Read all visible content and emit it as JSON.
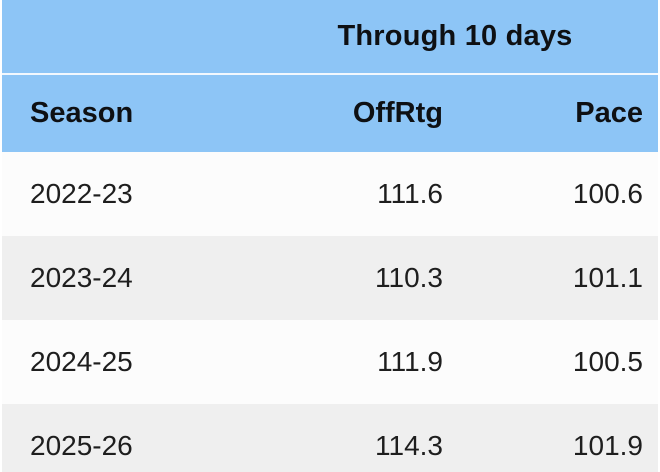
{
  "table": {
    "group_header": "Through 10 days",
    "columns": [
      {
        "label": "Season",
        "align": "left"
      },
      {
        "label": "OffRtg",
        "align": "right"
      },
      {
        "label": "Pace",
        "align": "right"
      }
    ],
    "rows": [
      {
        "season": "2022-23",
        "offrtg": "111.6",
        "pace": "100.6"
      },
      {
        "season": "2023-24",
        "offrtg": "110.3",
        "pace": "101.1"
      },
      {
        "season": "2024-25",
        "offrtg": "111.9",
        "pace": "100.5"
      },
      {
        "season": "2025-26",
        "offrtg": "114.3",
        "pace": "101.9"
      }
    ],
    "colors": {
      "header_blue": "#8dc5f6",
      "separator_line": "#f2f8fe",
      "row_light": "#fcfcfc",
      "row_gray": "#efefef",
      "text_dark": "#0e1013"
    }
  },
  "chart_data": {
    "type": "table",
    "title": "Through 10 days",
    "columns": [
      "Season",
      "OffRtg",
      "Pace"
    ],
    "rows": [
      [
        "2022-23",
        111.6,
        100.6
      ],
      [
        "2023-24",
        110.3,
        101.1
      ],
      [
        "2024-25",
        111.9,
        100.5
      ],
      [
        "2025-26",
        114.3,
        101.9
      ]
    ]
  }
}
